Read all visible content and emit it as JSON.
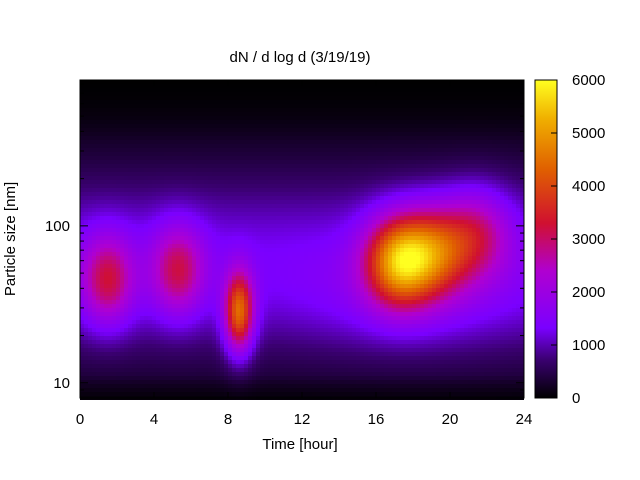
{
  "chart_data": {
    "type": "heatmap",
    "title": "dN / d log d (3/19/19)",
    "xlabel": "Time [hour]",
    "ylabel": "Particle size [nm]",
    "x_ticks": [
      0,
      4,
      8,
      12,
      16,
      20,
      24
    ],
    "xlim": [
      0,
      24
    ],
    "y_scale": "log",
    "y_ticks": [
      10,
      100
    ],
    "ylim": [
      8,
      850
    ],
    "colorbar": {
      "range": [
        0,
        6000
      ],
      "ticks": [
        0,
        1000,
        2000,
        3000,
        4000,
        5000,
        6000
      ],
      "palette": [
        "#000000",
        "#3a0070",
        "#7a00ff",
        "#b000d0",
        "#d01030",
        "#e06000",
        "#f0b000",
        "#ffff20"
      ]
    },
    "features": [
      {
        "x": 1.5,
        "d": 45,
        "value": 3300
      },
      {
        "x": 5.3,
        "d": 52,
        "value": 3200
      },
      {
        "x": 8.6,
        "d": 28,
        "value": 4700
      },
      {
        "x": 17.3,
        "d": 60,
        "value": 5000
      },
      {
        "x": 19.3,
        "d": 70,
        "value": 3500
      },
      {
        "x": 21.5,
        "d": 90,
        "value": 2900
      }
    ]
  }
}
